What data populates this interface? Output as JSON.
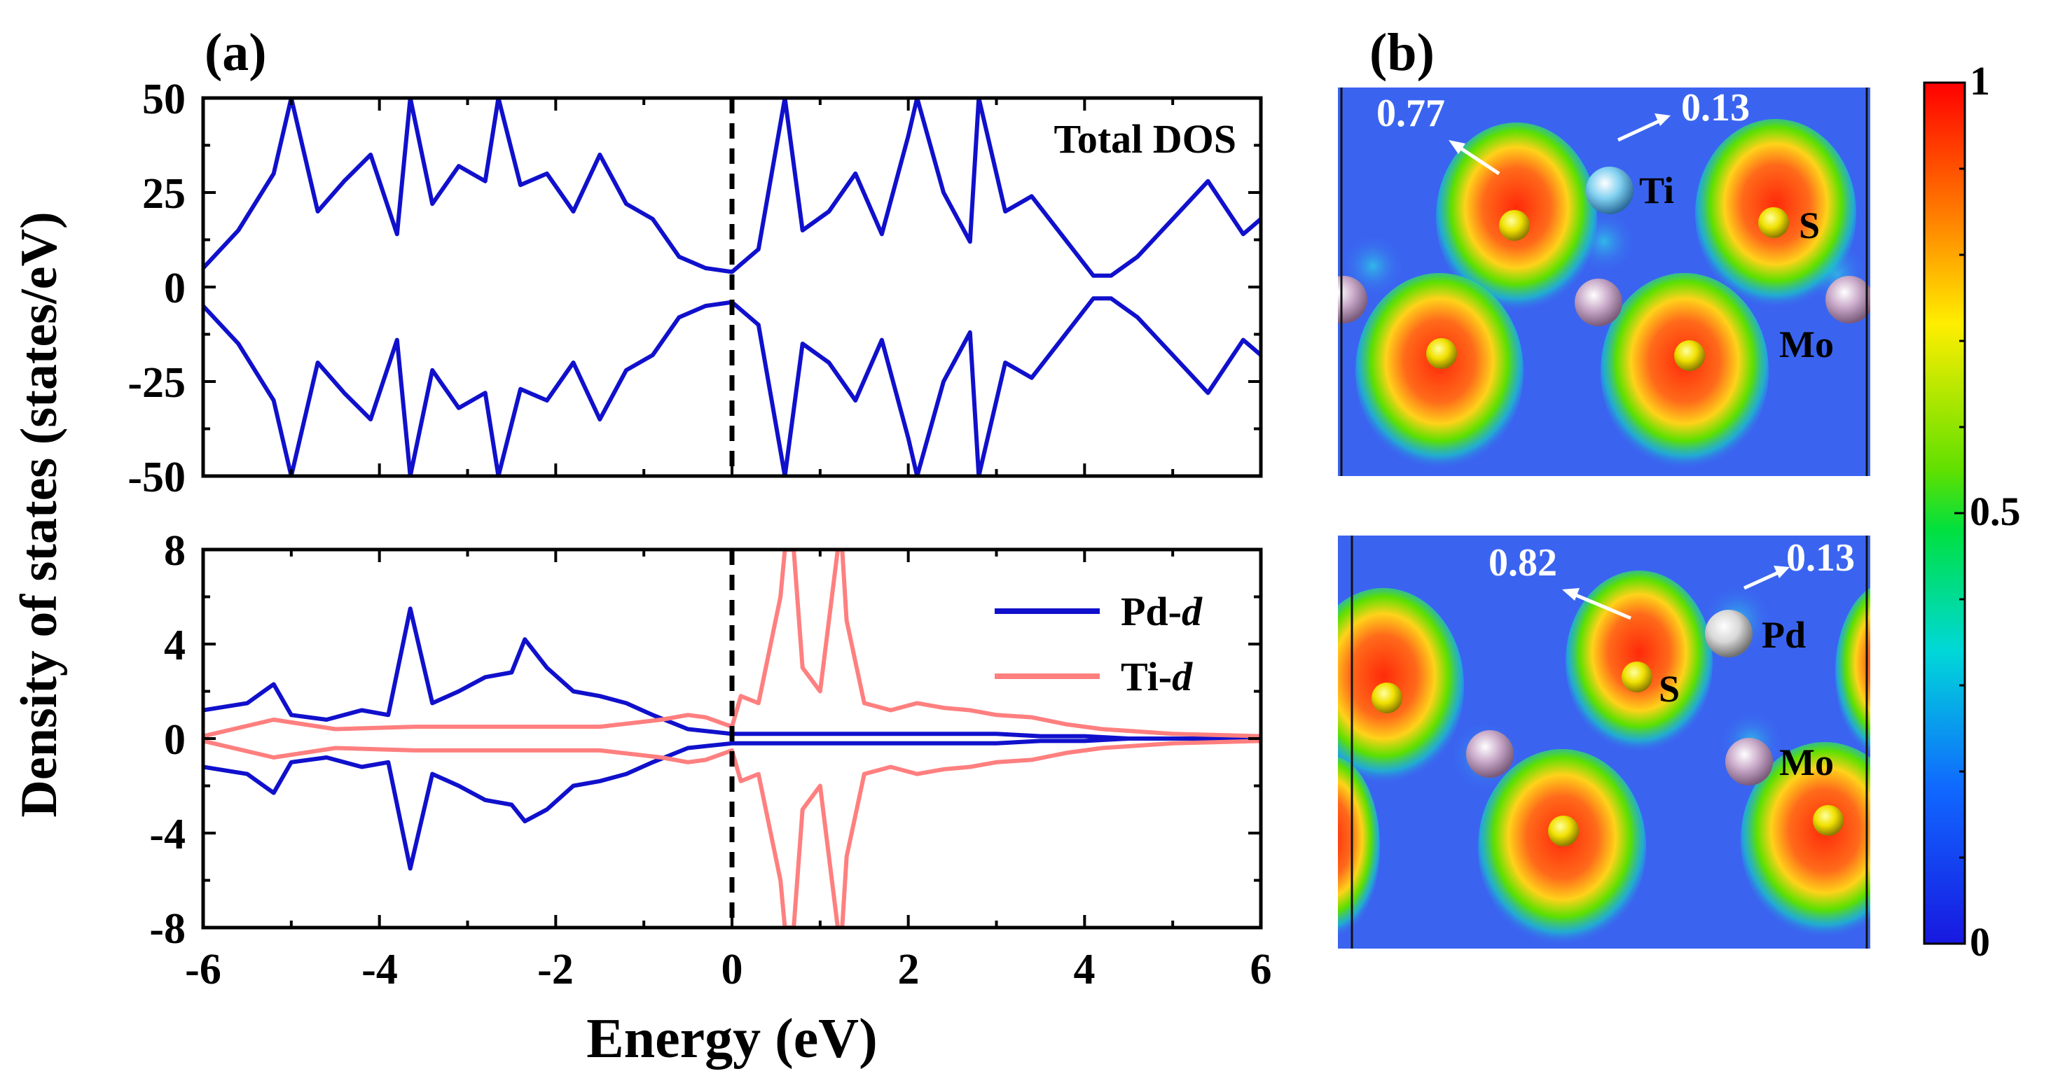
{
  "panel_labels": {
    "a": "(a)",
    "b": "(b)"
  },
  "chart_data": [
    {
      "type": "line",
      "title": "",
      "annotation": "Total DOS",
      "xlabel": "Energy (eV)",
      "ylabel": "Density of states (states/eV)",
      "xlim": [
        -6,
        6
      ],
      "ylim": [
        -50,
        50
      ],
      "yticks": [
        "50",
        "25",
        "0",
        "-25",
        "-50"
      ],
      "reference_line_x": 0,
      "series": [
        {
          "name": "Total DOS (spin up)",
          "color": "#1010cc",
          "x": [
            -6,
            -5.6,
            -5.2,
            -5,
            -4.7,
            -4.4,
            -4.1,
            -3.8,
            -3.65,
            -3.4,
            -3.1,
            -2.8,
            -2.65,
            -2.4,
            -2.1,
            -1.8,
            -1.5,
            -1.2,
            -0.9,
            -0.6,
            -0.3,
            0,
            0.3,
            0.6,
            0.8,
            1.1,
            1.4,
            1.7,
            2,
            2.1,
            2.4,
            2.7,
            2.8,
            3.1,
            3.4,
            3.7,
            4.1,
            4.3,
            4.6,
            5,
            5.4,
            5.8,
            6
          ],
          "values": [
            5,
            15,
            30,
            50,
            20,
            28,
            35,
            14,
            50,
            22,
            32,
            28,
            50,
            27,
            30,
            20,
            35,
            22,
            18,
            8,
            5,
            4,
            10,
            50,
            15,
            20,
            30,
            14,
            40,
            50,
            25,
            12,
            50,
            20,
            24,
            15,
            3,
            3,
            8,
            18,
            28,
            14,
            18
          ]
        },
        {
          "name": "Total DOS (spin down)",
          "color": "#1010cc",
          "x": [
            -6,
            -5.6,
            -5.2,
            -5,
            -4.7,
            -4.4,
            -4.1,
            -3.8,
            -3.65,
            -3.4,
            -3.1,
            -2.8,
            -2.65,
            -2.4,
            -2.1,
            -1.8,
            -1.5,
            -1.2,
            -0.9,
            -0.6,
            -0.3,
            0,
            0.3,
            0.6,
            0.8,
            1.1,
            1.4,
            1.7,
            2,
            2.1,
            2.4,
            2.7,
            2.8,
            3.1,
            3.4,
            3.7,
            4.1,
            4.3,
            4.6,
            5,
            5.4,
            5.8,
            6
          ],
          "values": [
            -5,
            -15,
            -30,
            -50,
            -20,
            -28,
            -35,
            -14,
            -50,
            -22,
            -32,
            -28,
            -50,
            -27,
            -30,
            -20,
            -35,
            -22,
            -18,
            -8,
            -5,
            -4,
            -10,
            -50,
            -15,
            -20,
            -30,
            -14,
            -40,
            -50,
            -25,
            -12,
            -50,
            -20,
            -24,
            -15,
            -3,
            -3,
            -8,
            -18,
            -28,
            -14,
            -18
          ]
        }
      ]
    },
    {
      "type": "line",
      "title": "",
      "xlabel": "Energy (eV)",
      "ylabel": "Density of states (states/eV)",
      "xlim": [
        -6,
        6
      ],
      "ylim": [
        -8,
        8
      ],
      "xticks": [
        "-6",
        "-4",
        "-2",
        "0",
        "2",
        "4",
        "6"
      ],
      "yticks": [
        "8",
        "4",
        "0",
        "-4",
        "-8"
      ],
      "reference_line_x": 0,
      "legend": "top-right",
      "series": [
        {
          "name": "Pd-d",
          "legend_prefix": "Pd-",
          "legend_suffix": "d",
          "color": "#1010cc",
          "x": [
            -6,
            -5.5,
            -5.2,
            -5,
            -4.6,
            -4.2,
            -3.9,
            -3.65,
            -3.4,
            -3.1,
            -2.8,
            -2.5,
            -2.35,
            -2.1,
            -1.8,
            -1.5,
            -1.2,
            -0.9,
            -0.5,
            0,
            0.5,
            1,
            1.5,
            2,
            2.5,
            3,
            3.5,
            4,
            4.5,
            5,
            6
          ],
          "values": [
            1.2,
            1.5,
            2.3,
            1.0,
            0.8,
            1.2,
            1.0,
            5.5,
            1.5,
            2.0,
            2.6,
            2.8,
            4.2,
            3.0,
            2.0,
            1.8,
            1.5,
            1.0,
            0.4,
            0.2,
            0.2,
            0.2,
            0.2,
            0.2,
            0.2,
            0.2,
            0.1,
            0.1,
            0,
            0,
            0
          ]
        },
        {
          "name": "Pd-d (spin down)",
          "color": "#1010cc",
          "x": [
            -6,
            -5.5,
            -5.2,
            -5,
            -4.6,
            -4.2,
            -3.9,
            -3.65,
            -3.4,
            -3.1,
            -2.8,
            -2.5,
            -2.35,
            -2.1,
            -1.8,
            -1.5,
            -1.2,
            -0.9,
            -0.5,
            0,
            0.5,
            1,
            1.5,
            2,
            2.5,
            3,
            3.5,
            4,
            4.5,
            5,
            6
          ],
          "values": [
            -1.2,
            -1.5,
            -2.3,
            -1.0,
            -0.8,
            -1.2,
            -1.0,
            -5.5,
            -1.5,
            -2.0,
            -2.6,
            -2.8,
            -3.5,
            -3.0,
            -2.0,
            -1.8,
            -1.5,
            -1.0,
            -0.4,
            -0.2,
            -0.2,
            -0.2,
            -0.2,
            -0.2,
            -0.2,
            -0.2,
            -0.1,
            -0.1,
            0,
            0,
            0
          ]
        },
        {
          "name": "Ti-d",
          "legend_prefix": "Ti-",
          "legend_suffix": "d",
          "color": "#ff7f7f",
          "x": [
            -6,
            -5.2,
            -4.5,
            -3.6,
            -2.5,
            -1.5,
            -0.8,
            -0.5,
            -0.3,
            0,
            0.1,
            0.3,
            0.55,
            0.6,
            0.7,
            0.8,
            1.0,
            1.2,
            1.25,
            1.3,
            1.5,
            1.8,
            2.1,
            2.4,
            2.7,
            3.0,
            3.4,
            3.8,
            4.2,
            5,
            6
          ],
          "values": [
            0.1,
            0.8,
            0.4,
            0.5,
            0.5,
            0.5,
            0.8,
            1.0,
            0.9,
            0.5,
            1.8,
            1.5,
            6,
            8,
            8,
            3,
            2,
            8,
            8,
            5,
            1.5,
            1.2,
            1.5,
            1.3,
            1.2,
            1.0,
            0.9,
            0.6,
            0.4,
            0.2,
            0.1
          ]
        },
        {
          "name": "Ti-d (spin down)",
          "color": "#ff7f7f",
          "x": [
            -6,
            -5.2,
            -4.5,
            -3.6,
            -2.5,
            -1.5,
            -0.8,
            -0.5,
            -0.3,
            0,
            0.1,
            0.3,
            0.55,
            0.6,
            0.7,
            0.8,
            1.0,
            1.2,
            1.25,
            1.3,
            1.5,
            1.8,
            2.1,
            2.4,
            2.7,
            3.0,
            3.4,
            3.8,
            4.2,
            5,
            6
          ],
          "values": [
            -0.1,
            -0.8,
            -0.4,
            -0.5,
            -0.5,
            -0.5,
            -0.8,
            -1.0,
            -0.9,
            -0.5,
            -1.8,
            -1.5,
            -6,
            -8,
            -8,
            -3,
            -2,
            -8,
            -8,
            -5,
            -1.5,
            -1.2,
            -1.5,
            -1.3,
            -1.2,
            -1.0,
            -0.9,
            -0.6,
            -0.4,
            -0.2,
            -0.1
          ]
        }
      ]
    },
    {
      "type": "heatmap",
      "title": "",
      "description_values": {
        "bond_S_Ti": "0.77",
        "bond_S_Ti_far": "0.13"
      },
      "atom_labels": [
        "Ti",
        "S",
        "Mo"
      ],
      "colorbar": {
        "min": 0,
        "max": 1,
        "ticks": [
          "1",
          "0.5",
          "0"
        ]
      }
    },
    {
      "type": "heatmap",
      "title": "",
      "description_values": {
        "bond_S_Pd": "0.82",
        "bond_S_Pd_far": "0.13"
      },
      "atom_labels": [
        "Pd",
        "S",
        "Mo"
      ],
      "colorbar": {
        "min": 0,
        "max": 1,
        "ticks": [
          "1",
          "0.5",
          "0"
        ]
      }
    }
  ]
}
